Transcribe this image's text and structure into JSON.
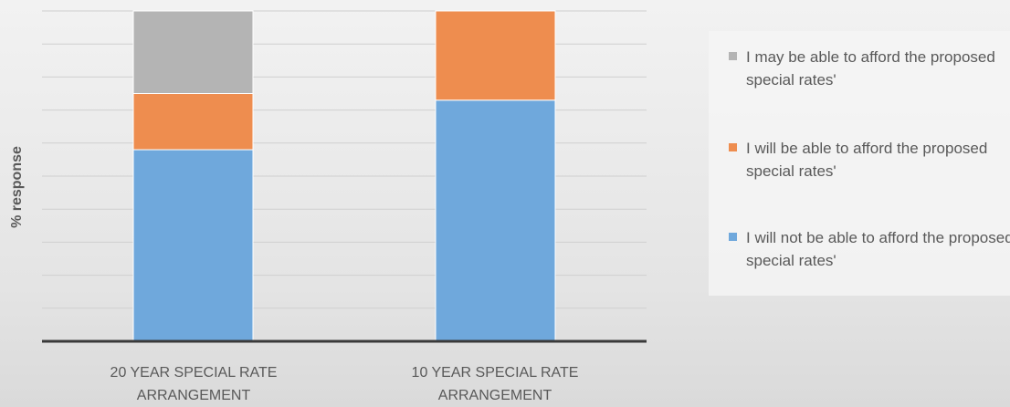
{
  "chart_data": {
    "type": "bar",
    "stacked": true,
    "categories": [
      "20 YEAR SPECIAL RATE ARRANGEMENT",
      "10 YEAR SPECIAL RATE ARRANGEMENT"
    ],
    "series": [
      {
        "name": "I will not be able to afford the proposed special rates'",
        "values": [
          58,
          73
        ],
        "color": "#6fa8dc"
      },
      {
        "name": "I will be able to afford the proposed special rates'",
        "values": [
          17,
          27
        ],
        "color": "#ee8d4f"
      },
      {
        "name": "I may be able to afford the proposed special rates'",
        "values": [
          25,
          0
        ],
        "color": "#b4b4b4"
      }
    ],
    "ylabel": "% response",
    "ylim": [
      0,
      100
    ],
    "grid": true,
    "legend": "right",
    "legend_order": [
      2,
      1,
      0
    ]
  }
}
